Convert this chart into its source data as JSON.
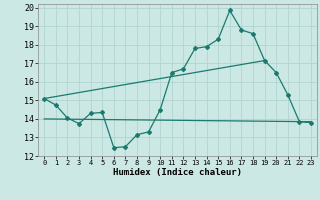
{
  "title": "",
  "xlabel": "Humidex (Indice chaleur)",
  "background_color": "#cce8e4",
  "line_color": "#1a7a6e",
  "grid_color": "#b0d4d0",
  "xlim": [
    -0.5,
    23.5
  ],
  "ylim": [
    12,
    20.2
  ],
  "yticks": [
    12,
    13,
    14,
    15,
    16,
    17,
    18,
    19,
    20
  ],
  "xticks": [
    0,
    1,
    2,
    3,
    4,
    5,
    6,
    7,
    8,
    9,
    10,
    11,
    12,
    13,
    14,
    15,
    16,
    17,
    18,
    19,
    20,
    21,
    22,
    23
  ],
  "line1_x": [
    0,
    1,
    2,
    3,
    4,
    5,
    6,
    7,
    8,
    9,
    10,
    11,
    12,
    13,
    14,
    15,
    16,
    17,
    18,
    19,
    20,
    21,
    22,
    23
  ],
  "line1_y": [
    15.1,
    14.75,
    14.05,
    13.75,
    14.3,
    14.35,
    12.45,
    12.5,
    13.15,
    13.3,
    14.5,
    16.5,
    16.7,
    17.8,
    17.9,
    18.3,
    19.85,
    18.8,
    18.6,
    17.15,
    16.5,
    15.3,
    13.85,
    13.8
  ],
  "line2_x": [
    0,
    19
  ],
  "line2_y": [
    15.1,
    17.15
  ],
  "line3_x": [
    0,
    23
  ],
  "line3_y": [
    14.0,
    13.85
  ]
}
